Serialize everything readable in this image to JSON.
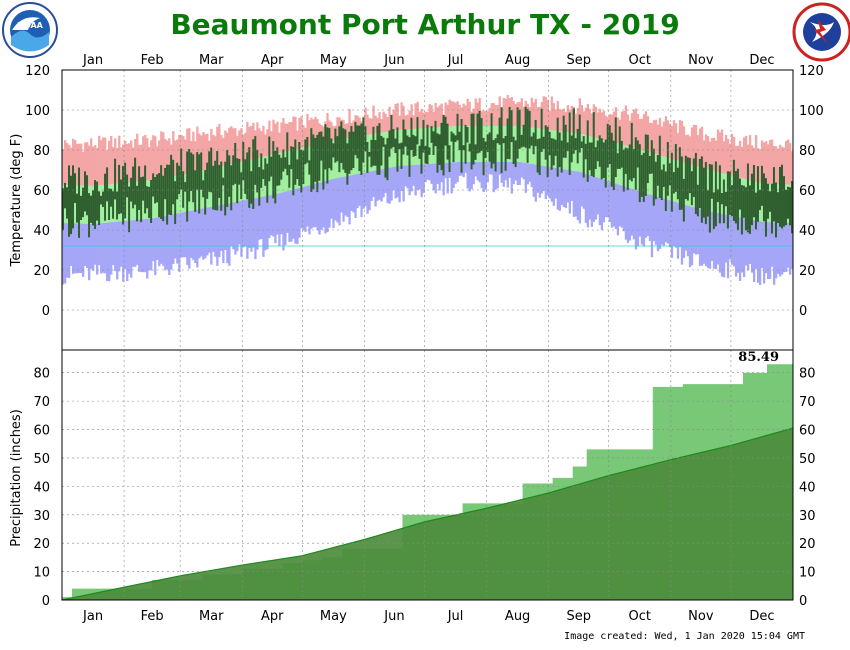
{
  "chart_data": [
    {
      "type": "bar",
      "title": "Beaumont Port Arthur TX - 2019",
      "ylabel": "Temperature (deg F)",
      "ylim": [
        -20,
        120
      ],
      "yticks": [
        0,
        20,
        40,
        60,
        80,
        100,
        120
      ],
      "months": [
        "Jan",
        "Feb",
        "Mar",
        "Apr",
        "May",
        "Jun",
        "Jul",
        "Aug",
        "Sep",
        "Oct",
        "Nov",
        "Dec"
      ],
      "grid": true,
      "reference_line_f": 32,
      "series": [
        {
          "key": "record_high",
          "color": "#f4a6a6"
        },
        {
          "key": "normal_range",
          "color": "#a0f0a0"
        },
        {
          "key": "record_low",
          "color": "#a6a6f8"
        },
        {
          "key": "observed",
          "color": "#2f5e2f"
        }
      ],
      "monthly_estimates": {
        "record_high": [
          83,
          85,
          89,
          92,
          96,
          100,
          102,
          104,
          102,
          97,
          88,
          83
        ],
        "normal_high": [
          62,
          65,
          71,
          78,
          85,
          90,
          92,
          92,
          88,
          80,
          71,
          63
        ],
        "normal_low": [
          43,
          46,
          52,
          58,
          66,
          72,
          74,
          74,
          69,
          59,
          50,
          44
        ],
        "record_low": [
          18,
          20,
          25,
          33,
          45,
          57,
          64,
          62,
          48,
          33,
          23,
          17
        ],
        "observed_high": [
          65,
          70,
          74,
          80,
          86,
          89,
          91,
          93,
          92,
          84,
          68,
          65
        ],
        "observed_low": [
          45,
          50,
          55,
          61,
          70,
          74,
          76,
          76,
          73,
          62,
          47,
          45
        ]
      }
    },
    {
      "type": "area",
      "ylabel": "Precipitation (inches)",
      "ylim": [
        0,
        88
      ],
      "yticks": [
        0,
        10,
        20,
        30,
        40,
        50,
        60,
        70,
        80
      ],
      "months": [
        "Jan",
        "Feb",
        "Mar",
        "Apr",
        "May",
        "Jun",
        "Jul",
        "Aug",
        "Sep",
        "Oct",
        "Nov",
        "Dec"
      ],
      "grid": true,
      "total_label": "85.49",
      "series": [
        {
          "key": "observed_cumulative",
          "color": "#78c878",
          "points": [
            [
              0,
              1
            ],
            [
              5,
              4
            ],
            [
              25,
              4
            ],
            [
              45,
              7
            ],
            [
              60,
              7
            ],
            [
              70,
              9
            ],
            [
              80,
              9
            ],
            [
              90,
              11
            ],
            [
              100,
              11
            ],
            [
              110,
              13
            ],
            [
              120,
              14
            ],
            [
              130,
              15
            ],
            [
              140,
              18
            ],
            [
              150,
              18
            ],
            [
              170,
              30
            ],
            [
              180,
              30
            ],
            [
              200,
              34
            ],
            [
              220,
              34
            ],
            [
              230,
              41
            ],
            [
              245,
              43
            ],
            [
              255,
              47
            ],
            [
              262,
              53
            ],
            [
              290,
              53
            ],
            [
              295,
              75
            ],
            [
              310,
              76
            ],
            [
              340,
              80
            ],
            [
              352,
              83
            ],
            [
              365,
              85.49
            ]
          ]
        },
        {
          "key": "normal_cumulative",
          "color": "#4c8c3c",
          "points": [
            [
              0,
              0
            ],
            [
              31,
              4.5
            ],
            [
              59,
              8.5
            ],
            [
              90,
              12.3
            ],
            [
              120,
              15.6
            ],
            [
              151,
              21.3
            ],
            [
              181,
              27.5
            ],
            [
              212,
              32.3
            ],
            [
              243,
              37.7
            ],
            [
              273,
              43.8
            ],
            [
              304,
              49.4
            ],
            [
              334,
              54.4
            ],
            [
              365,
              60.5
            ]
          ]
        }
      ]
    }
  ],
  "footer": "Image created: Wed, 1 Jan 2020 15:04 GMT",
  "logos": {
    "left": "NOAA",
    "right": "National Weather Service"
  }
}
